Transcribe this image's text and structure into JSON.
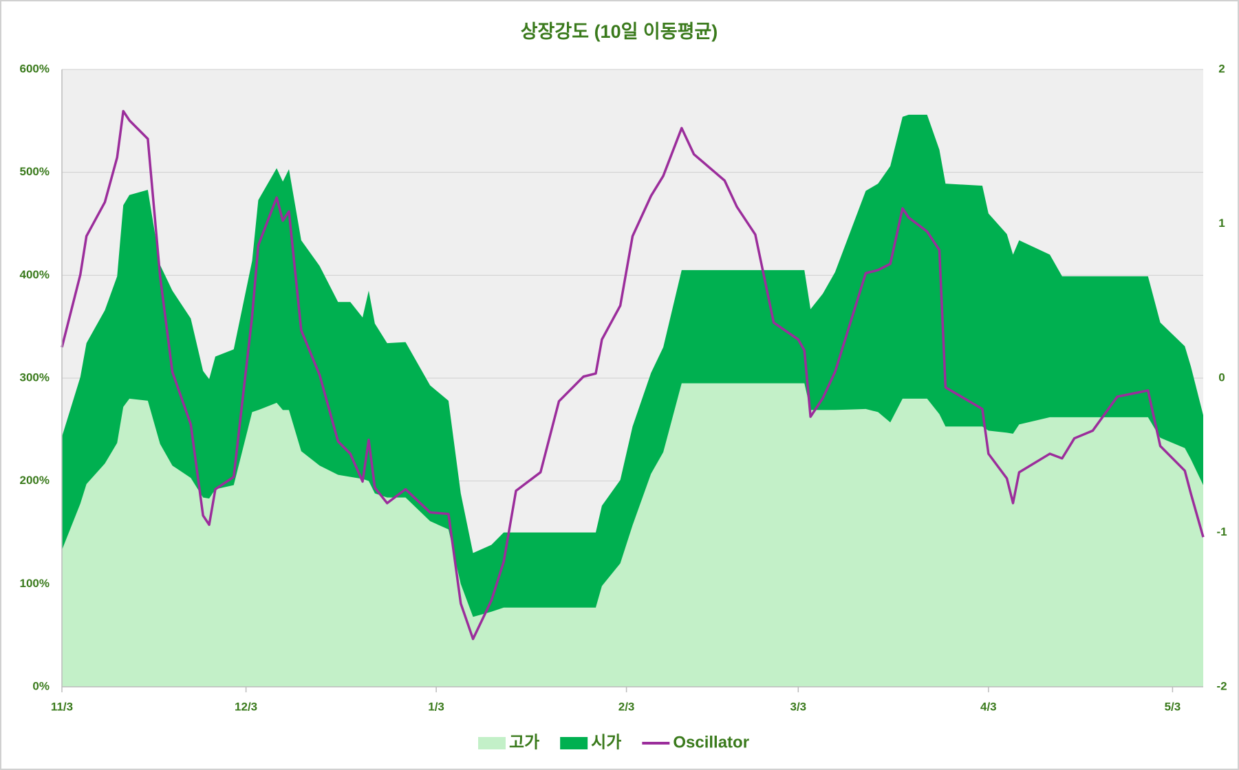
{
  "chart_data": {
    "type": "area",
    "title": "상장강도 (10일 이동평균)",
    "x": [
      0,
      3,
      4,
      7,
      9,
      10,
      11,
      14,
      16,
      18,
      21,
      23,
      24,
      25,
      28,
      31,
      32,
      35,
      36,
      37,
      39,
      42,
      45,
      47,
      49,
      50,
      51,
      53,
      56,
      60,
      63,
      65,
      67,
      70,
      72,
      74,
      78,
      81,
      85,
      87,
      88,
      91,
      93,
      96,
      98,
      101,
      103,
      108,
      110,
      113,
      116,
      120,
      121,
      122,
      124,
      126,
      131,
      133,
      135,
      137,
      138,
      141,
      143,
      144,
      150,
      151,
      154,
      155,
      156,
      161,
      163,
      165,
      168,
      172,
      177,
      179,
      183,
      184,
      186
    ],
    "xlim": [
      0,
      186
    ],
    "xticks": [
      {
        "value": 0,
        "label": "11/3"
      },
      {
        "value": 30,
        "label": "12/3"
      },
      {
        "value": 61,
        "label": "1/3"
      },
      {
        "value": 92,
        "label": "2/3"
      },
      {
        "value": 120,
        "label": "3/3"
      },
      {
        "value": 151,
        "label": "4/3"
      },
      {
        "value": 181,
        "label": "5/3"
      }
    ],
    "ylim": [
      0,
      600
    ],
    "yticks": [
      {
        "value": 0,
        "label": "0%"
      },
      {
        "value": 100,
        "label": "100%"
      },
      {
        "value": 200,
        "label": "200%"
      },
      {
        "value": 300,
        "label": "300%"
      },
      {
        "value": 400,
        "label": "400%"
      },
      {
        "value": 500,
        "label": "500%"
      },
      {
        "value": 600,
        "label": "600%"
      }
    ],
    "y2lim": [
      -2,
      2
    ],
    "y2ticks": [
      -2,
      -1,
      0,
      1,
      2
    ],
    "grid": true,
    "legend": "bottom",
    "series": [
      {
        "name": "고가",
        "color": "#c3f0c8",
        "type": "area",
        "values": [
          133,
          178,
          197,
          217,
          237,
          272,
          280,
          278,
          236,
          215,
          203,
          184,
          183,
          192,
          196,
          267,
          269,
          276,
          269,
          269,
          229,
          215,
          206,
          204,
          202,
          200,
          188,
          184,
          184,
          161,
          153,
          100,
          68,
          73,
          77,
          77,
          77,
          77,
          77,
          77,
          98,
          120,
          157,
          207,
          228,
          295,
          295,
          295,
          295,
          295,
          295,
          295,
          295,
          269,
          269,
          269,
          270,
          267,
          257,
          280,
          280,
          280,
          265,
          253,
          253,
          249,
          247,
          246,
          255,
          262,
          262,
          262,
          262,
          262,
          262,
          242,
          232,
          221,
          196
        ]
      },
      {
        "name": "시가",
        "color": "#00b050",
        "type": "area",
        "values": [
          243,
          301,
          334,
          366,
          399,
          468,
          478,
          483,
          410,
          385,
          358,
          307,
          299,
          321,
          328,
          414,
          473,
          504,
          491,
          503,
          434,
          409,
          374,
          374,
          359,
          385,
          353,
          334,
          335,
          293,
          278,
          188,
          130,
          138,
          150,
          150,
          150,
          150,
          150,
          150,
          176,
          201,
          253,
          305,
          330,
          405,
          405,
          405,
          405,
          405,
          405,
          405,
          405,
          367,
          382,
          403,
          482,
          489,
          506,
          554,
          556,
          556,
          522,
          489,
          487,
          460,
          440,
          420,
          434,
          420,
          399,
          399,
          399,
          399,
          399,
          354,
          331,
          311,
          264
        ]
      },
      {
        "name": "Oscillator",
        "color": "#9b2d9b",
        "type": "line",
        "axis": "y2",
        "values": [
          0.2,
          0.67,
          0.92,
          1.14,
          1.43,
          1.73,
          1.67,
          1.55,
          0.66,
          0.04,
          -0.3,
          -0.89,
          -0.95,
          -0.72,
          -0.64,
          0.4,
          0.86,
          1.17,
          1.02,
          1.08,
          0.31,
          0.02,
          -0.41,
          -0.49,
          -0.67,
          -0.4,
          -0.71,
          -0.81,
          -0.72,
          -0.87,
          -0.88,
          -1.46,
          -1.69,
          -1.44,
          -1.19,
          -0.73,
          -0.61,
          -0.15,
          0.01,
          0.03,
          0.25,
          0.47,
          0.92,
          1.18,
          1.31,
          1.62,
          1.45,
          1.28,
          1.11,
          0.93,
          0.36,
          0.25,
          0.18,
          -0.25,
          -0.13,
          0.04,
          0.68,
          0.7,
          0.74,
          1.1,
          1.04,
          0.95,
          0.83,
          -0.06,
          -0.2,
          -0.49,
          -0.65,
          -0.81,
          -0.61,
          -0.49,
          -0.52,
          -0.39,
          -0.34,
          -0.12,
          -0.08,
          -0.44,
          -0.6,
          -0.75,
          -1.03
        ]
      }
    ]
  }
}
